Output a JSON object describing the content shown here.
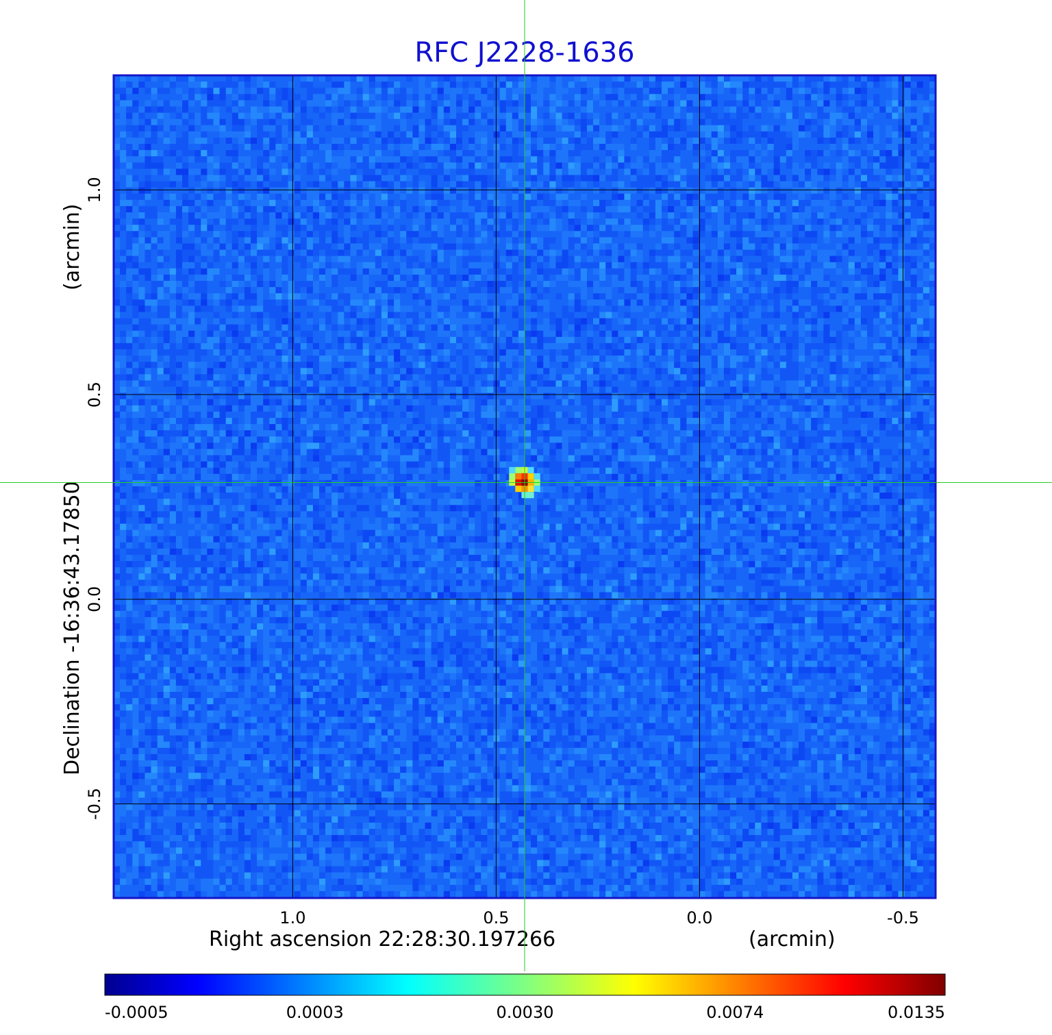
{
  "chart_data": {
    "type": "heatmap",
    "title": "RFC J2228-1636",
    "xlabel": "Right ascension  22:28:30.197266",
    "xunit": "(arcmin)",
    "ylabel": "Declination  -16:36:43.17850",
    "yunit": "(arcmin)",
    "x_ticks": [
      "1.0",
      "0.5",
      "0.0",
      "-0.5"
    ],
    "x_tick_values": [
      1.0,
      0.5,
      0.0,
      -0.5
    ],
    "y_ticks": [
      "1.0",
      "0.5",
      "0.0",
      "-0.5"
    ],
    "y_tick_values": [
      1.0,
      0.5,
      0.0,
      -0.5
    ],
    "xlim": [
      1.44,
      -0.58
    ],
    "ylim": [
      -0.73,
      1.28
    ],
    "grid": true,
    "crosshair": {
      "x": 0.43,
      "y": 0.285,
      "color": "#22cc22"
    },
    "colorbar": {
      "labels": [
        "-0.0005",
        "0.0003",
        "0.0030",
        "0.0074",
        "0.0135"
      ],
      "colormap": "jet"
    },
    "source_peak": {
      "x": 0.43,
      "y": 0.285,
      "value": 0.0135
    },
    "colors": {
      "title": "#1010d0",
      "frame": "#1515c8",
      "grid": "#000000"
    }
  }
}
